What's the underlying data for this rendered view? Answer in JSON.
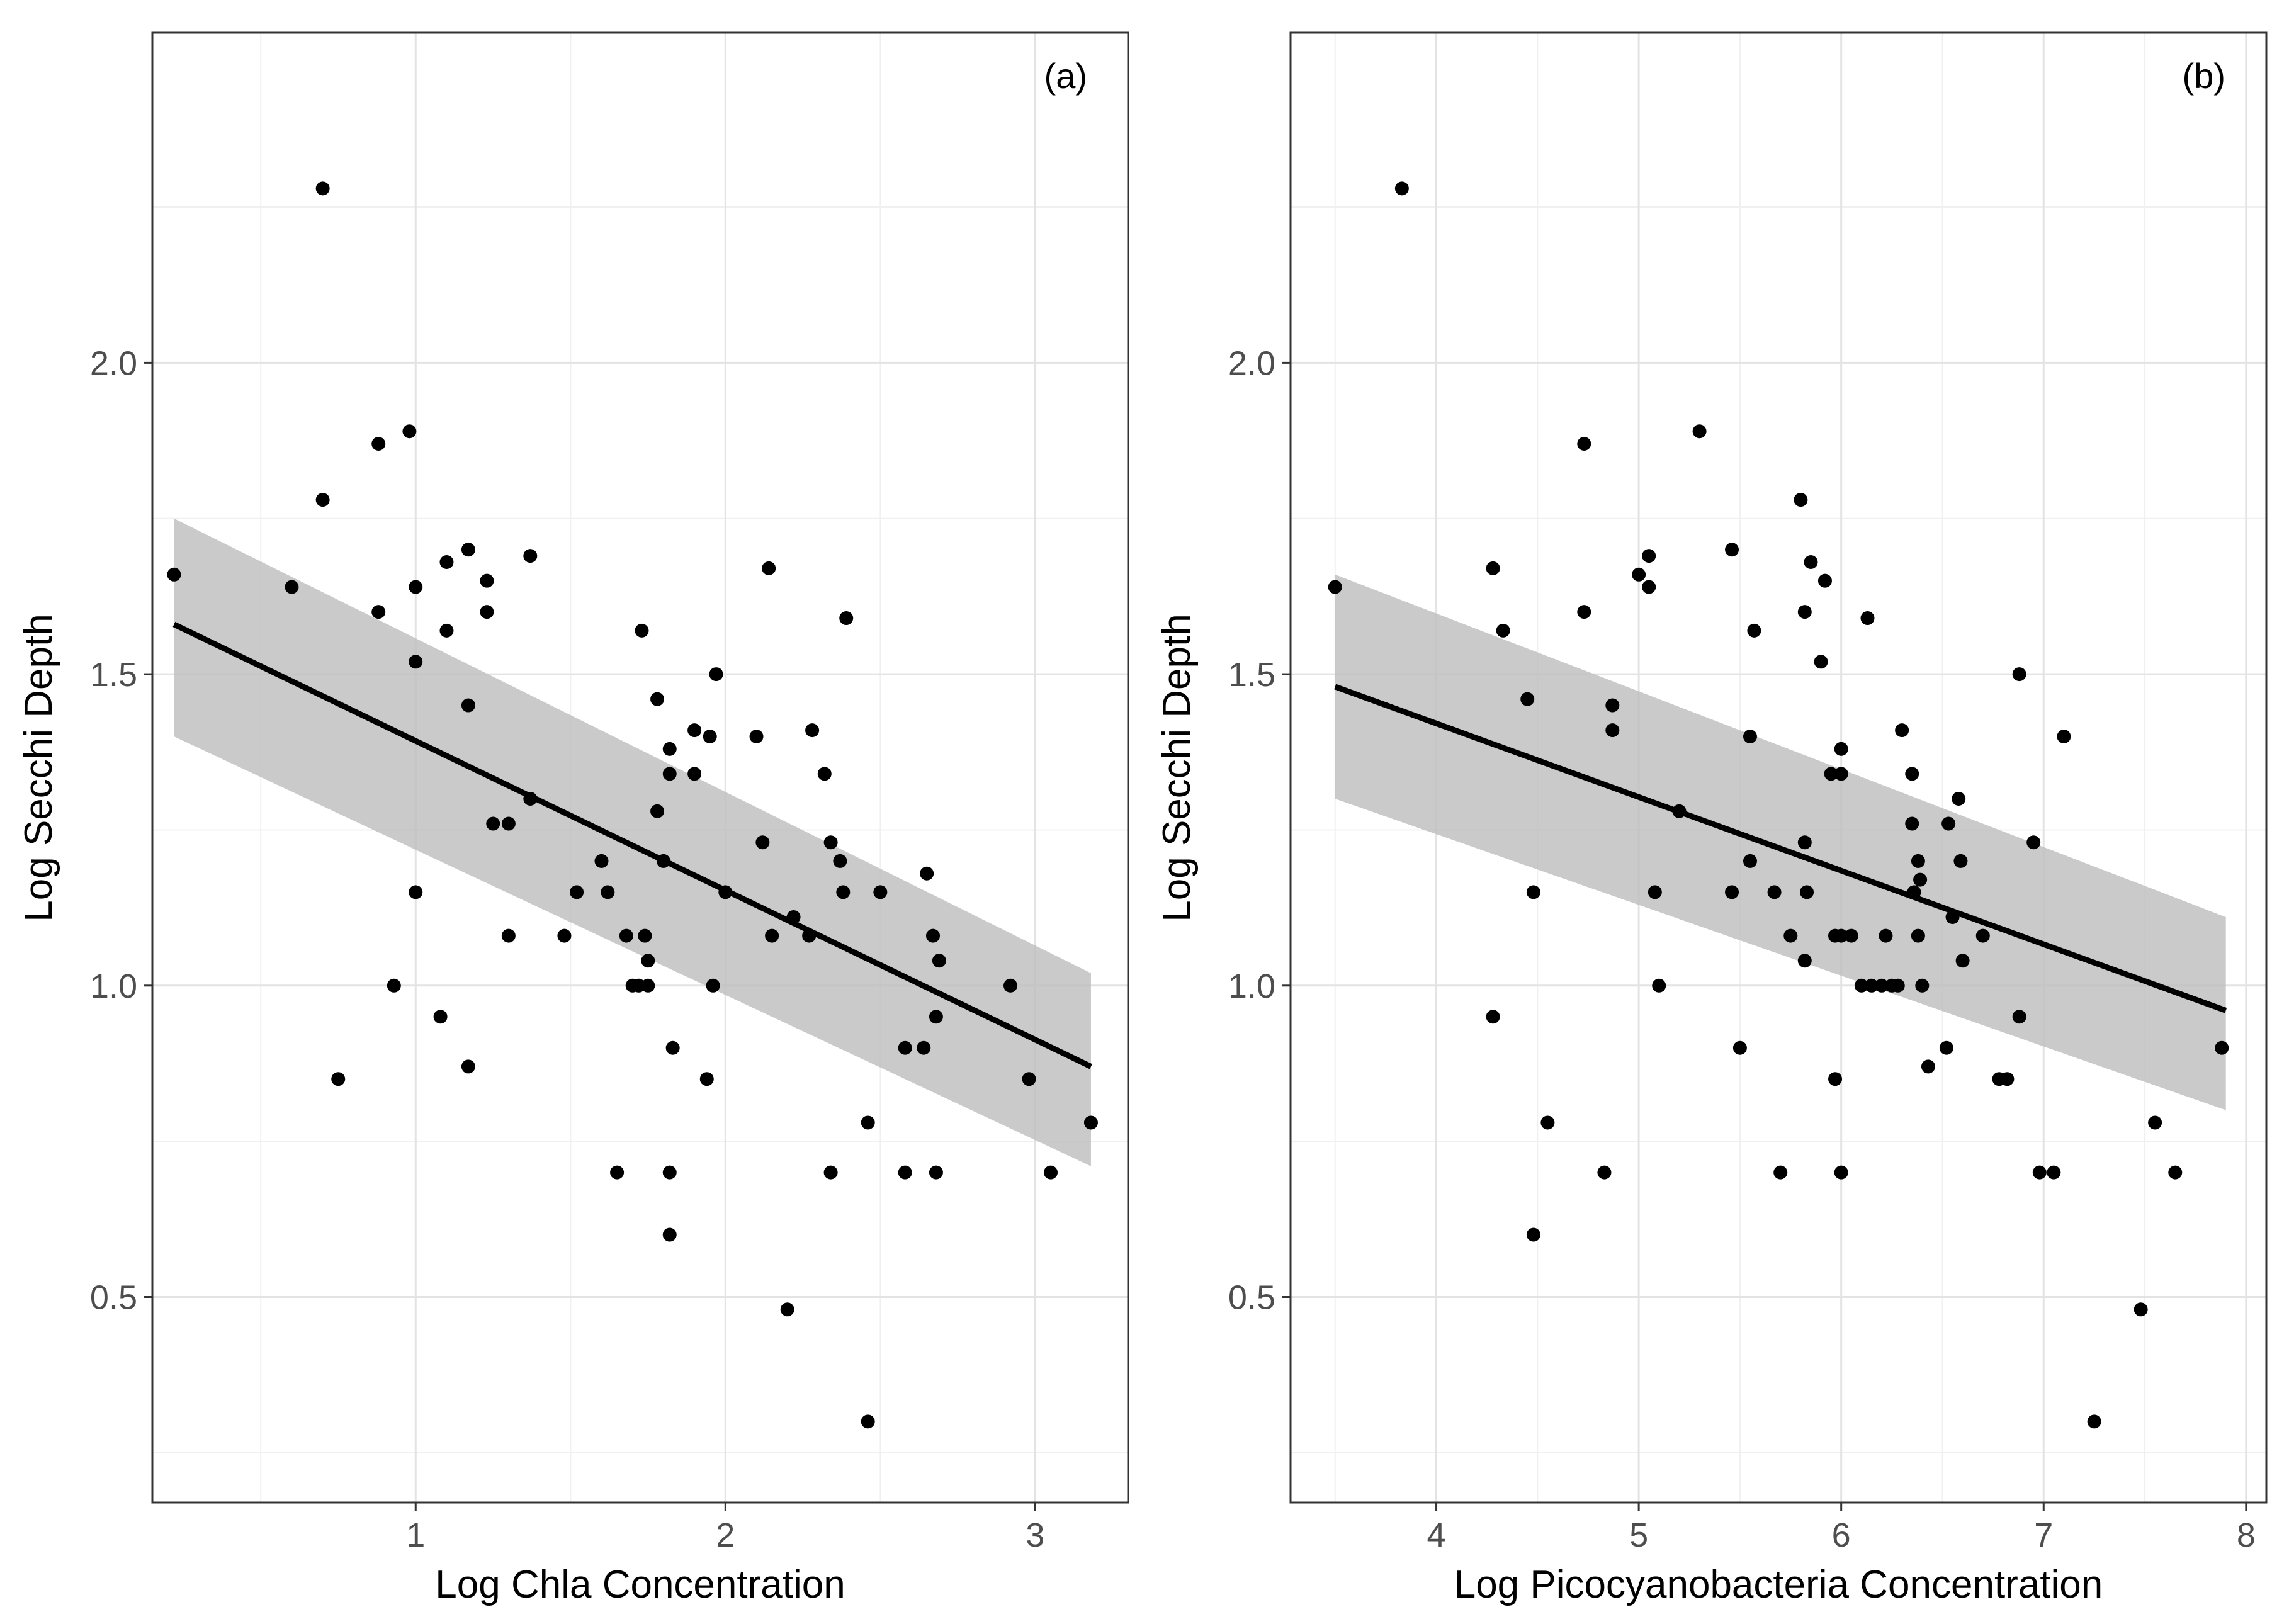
{
  "chart_data": [
    {
      "type": "scatter",
      "panel_label": "(a)",
      "xlabel": "Log Chla Concentration",
      "ylabel": "Log Secchi Depth",
      "xlim": [
        0.15,
        3.3
      ],
      "ylim": [
        0.17,
        2.53
      ],
      "xticks": [
        1,
        2,
        3
      ],
      "yticks": [
        0.5,
        1.0,
        1.5,
        2.0
      ],
      "ytick_labels": [
        "0.5",
        "1.0",
        "1.5",
        "2.0"
      ],
      "grid": true,
      "trend": {
        "x": [
          0.22,
          3.18
        ],
        "y": [
          1.58,
          0.87
        ],
        "ci_lower": [
          1.4,
          0.71
        ],
        "ci_upper": [
          1.75,
          1.02
        ]
      },
      "points": [
        [
          0.22,
          1.66
        ],
        [
          0.6,
          1.64
        ],
        [
          0.7,
          2.28
        ],
        [
          0.7,
          1.78
        ],
        [
          0.75,
          0.85
        ],
        [
          0.88,
          1.87
        ],
        [
          0.88,
          1.6
        ],
        [
          0.93,
          1.0
        ],
        [
          0.98,
          1.89
        ],
        [
          1.0,
          1.64
        ],
        [
          1.0,
          1.52
        ],
        [
          1.0,
          1.15
        ],
        [
          1.08,
          0.95
        ],
        [
          1.1,
          1.68
        ],
        [
          1.1,
          1.57
        ],
        [
          1.17,
          1.7
        ],
        [
          1.17,
          1.45
        ],
        [
          1.17,
          0.87
        ],
        [
          1.23,
          1.65
        ],
        [
          1.23,
          1.6
        ],
        [
          1.25,
          1.26
        ],
        [
          1.3,
          1.26
        ],
        [
          1.3,
          1.08
        ],
        [
          1.37,
          1.69
        ],
        [
          1.37,
          1.3
        ],
        [
          1.48,
          1.08
        ],
        [
          1.52,
          1.15
        ],
        [
          1.6,
          1.2
        ],
        [
          1.62,
          1.15
        ],
        [
          1.65,
          0.7
        ],
        [
          1.68,
          1.08
        ],
        [
          1.7,
          1.0
        ],
        [
          1.72,
          1.0
        ],
        [
          1.73,
          1.57
        ],
        [
          1.74,
          1.08
        ],
        [
          1.75,
          1.04
        ],
        [
          1.75,
          1.0
        ],
        [
          1.78,
          1.46
        ],
        [
          1.78,
          1.28
        ],
        [
          1.8,
          1.2
        ],
        [
          1.82,
          1.38
        ],
        [
          1.82,
          1.34
        ],
        [
          1.82,
          0.7
        ],
        [
          1.82,
          0.6
        ],
        [
          1.83,
          0.9
        ],
        [
          1.9,
          1.41
        ],
        [
          1.9,
          1.34
        ],
        [
          1.94,
          0.85
        ],
        [
          1.95,
          1.4
        ],
        [
          1.96,
          1.0
        ],
        [
          1.97,
          1.5
        ],
        [
          2.0,
          1.15
        ],
        [
          2.1,
          1.4
        ],
        [
          2.12,
          1.23
        ],
        [
          2.14,
          1.67
        ],
        [
          2.15,
          1.08
        ],
        [
          2.2,
          0.48
        ],
        [
          2.22,
          1.11
        ],
        [
          2.27,
          1.08
        ],
        [
          2.28,
          1.41
        ],
        [
          2.32,
          1.34
        ],
        [
          2.34,
          1.23
        ],
        [
          2.34,
          0.7
        ],
        [
          2.37,
          1.2
        ],
        [
          2.38,
          1.15
        ],
        [
          2.39,
          1.59
        ],
        [
          2.46,
          0.78
        ],
        [
          2.46,
          0.3
        ],
        [
          2.5,
          1.15
        ],
        [
          2.58,
          0.9
        ],
        [
          2.58,
          0.7
        ],
        [
          2.64,
          0.9
        ],
        [
          2.65,
          1.18
        ],
        [
          2.67,
          1.08
        ],
        [
          2.68,
          0.95
        ],
        [
          2.68,
          0.7
        ],
        [
          2.69,
          1.04
        ],
        [
          2.92,
          1.0
        ],
        [
          2.98,
          0.85
        ],
        [
          3.05,
          0.7
        ],
        [
          3.18,
          0.78
        ]
      ]
    },
    {
      "type": "scatter",
      "panel_label": "(b)",
      "xlabel": "Log Picocyanobacteria Concentration",
      "ylabel": "Log Secchi Depth",
      "xlim": [
        3.28,
        8.1
      ],
      "ylim": [
        0.17,
        2.53
      ],
      "xticks": [
        4,
        5,
        6,
        7,
        8
      ],
      "yticks": [
        0.5,
        1.0,
        1.5,
        2.0
      ],
      "ytick_labels": [
        "0.5",
        "1.0",
        "1.5",
        "2.0"
      ],
      "grid": true,
      "trend": {
        "x": [
          3.5,
          7.9
        ],
        "y": [
          1.48,
          0.96
        ],
        "ci_lower": [
          1.3,
          0.8
        ],
        "ci_upper": [
          1.66,
          1.11
        ]
      },
      "points": [
        [
          3.5,
          1.64
        ],
        [
          3.83,
          2.28
        ],
        [
          4.28,
          1.67
        ],
        [
          4.28,
          0.95
        ],
        [
          4.33,
          1.57
        ],
        [
          4.45,
          1.46
        ],
        [
          4.48,
          1.15
        ],
        [
          4.48,
          0.6
        ],
        [
          4.55,
          0.78
        ],
        [
          4.73,
          1.87
        ],
        [
          4.73,
          1.6
        ],
        [
          4.83,
          0.7
        ],
        [
          4.87,
          1.45
        ],
        [
          4.87,
          1.41
        ],
        [
          5.0,
          1.66
        ],
        [
          5.05,
          1.69
        ],
        [
          5.05,
          1.64
        ],
        [
          5.08,
          1.15
        ],
        [
          5.1,
          1.0
        ],
        [
          5.2,
          1.28
        ],
        [
          5.3,
          1.89
        ],
        [
          5.46,
          1.7
        ],
        [
          5.46,
          1.15
        ],
        [
          5.5,
          0.9
        ],
        [
          5.55,
          1.4
        ],
        [
          5.55,
          1.2
        ],
        [
          5.57,
          1.57
        ],
        [
          5.67,
          1.15
        ],
        [
          5.7,
          0.7
        ],
        [
          5.75,
          1.08
        ],
        [
          5.8,
          1.78
        ],
        [
          5.82,
          1.6
        ],
        [
          5.82,
          1.23
        ],
        [
          5.82,
          1.04
        ],
        [
          5.83,
          1.15
        ],
        [
          5.85,
          1.68
        ],
        [
          5.9,
          1.52
        ],
        [
          5.92,
          1.65
        ],
        [
          5.95,
          1.34
        ],
        [
          5.97,
          1.08
        ],
        [
          5.97,
          0.85
        ],
        [
          6.0,
          1.38
        ],
        [
          6.0,
          1.34
        ],
        [
          6.0,
          1.08
        ],
        [
          6.0,
          0.7
        ],
        [
          6.05,
          1.08
        ],
        [
          6.1,
          1.0
        ],
        [
          6.13,
          1.59
        ],
        [
          6.15,
          1.0
        ],
        [
          6.2,
          1.0
        ],
        [
          6.22,
          1.08
        ],
        [
          6.25,
          1.0
        ],
        [
          6.28,
          1.0
        ],
        [
          6.3,
          1.41
        ],
        [
          6.35,
          1.34
        ],
        [
          6.35,
          1.26
        ],
        [
          6.36,
          1.15
        ],
        [
          6.38,
          1.2
        ],
        [
          6.38,
          1.08
        ],
        [
          6.39,
          1.17
        ],
        [
          6.4,
          1.0
        ],
        [
          6.43,
          0.87
        ],
        [
          6.52,
          0.9
        ],
        [
          6.53,
          1.26
        ],
        [
          6.55,
          1.11
        ],
        [
          6.58,
          1.3
        ],
        [
          6.59,
          1.2
        ],
        [
          6.6,
          1.04
        ],
        [
          6.7,
          1.08
        ],
        [
          6.78,
          0.85
        ],
        [
          6.82,
          0.85
        ],
        [
          6.88,
          1.5
        ],
        [
          6.88,
          0.95
        ],
        [
          6.95,
          1.23
        ],
        [
          6.98,
          0.7
        ],
        [
          7.05,
          0.7
        ],
        [
          7.1,
          1.4
        ],
        [
          7.25,
          0.3
        ],
        [
          7.48,
          0.48
        ],
        [
          7.55,
          0.78
        ],
        [
          7.65,
          0.7
        ],
        [
          7.88,
          0.9
        ]
      ]
    }
  ]
}
